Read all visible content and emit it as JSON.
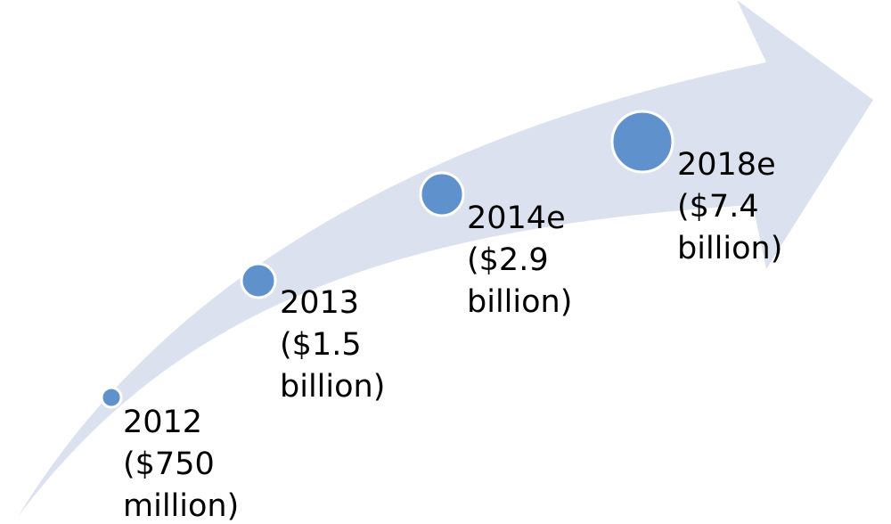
{
  "colors": {
    "arrow_fill": "#dbe1ef",
    "marker_fill": "#5f91cd",
    "marker_stroke": "#ffffff",
    "text": "#000000"
  },
  "milestones": [
    {
      "id": "2012",
      "year": "2012",
      "amount_line": "($750",
      "unit_line": "million)",
      "value_usd_billion": 0.75
    },
    {
      "id": "2013",
      "year": "2013",
      "amount_line": "($1.5",
      "unit_line": "billion)",
      "value_usd_billion": 1.5
    },
    {
      "id": "2014",
      "year": "2014e",
      "amount_line": "($2.9",
      "unit_line": "billion)",
      "value_usd_billion": 2.9
    },
    {
      "id": "2018",
      "year": "2018e",
      "amount_line": "($7.4",
      "unit_line": "billion)",
      "value_usd_billion": 7.4
    }
  ]
}
